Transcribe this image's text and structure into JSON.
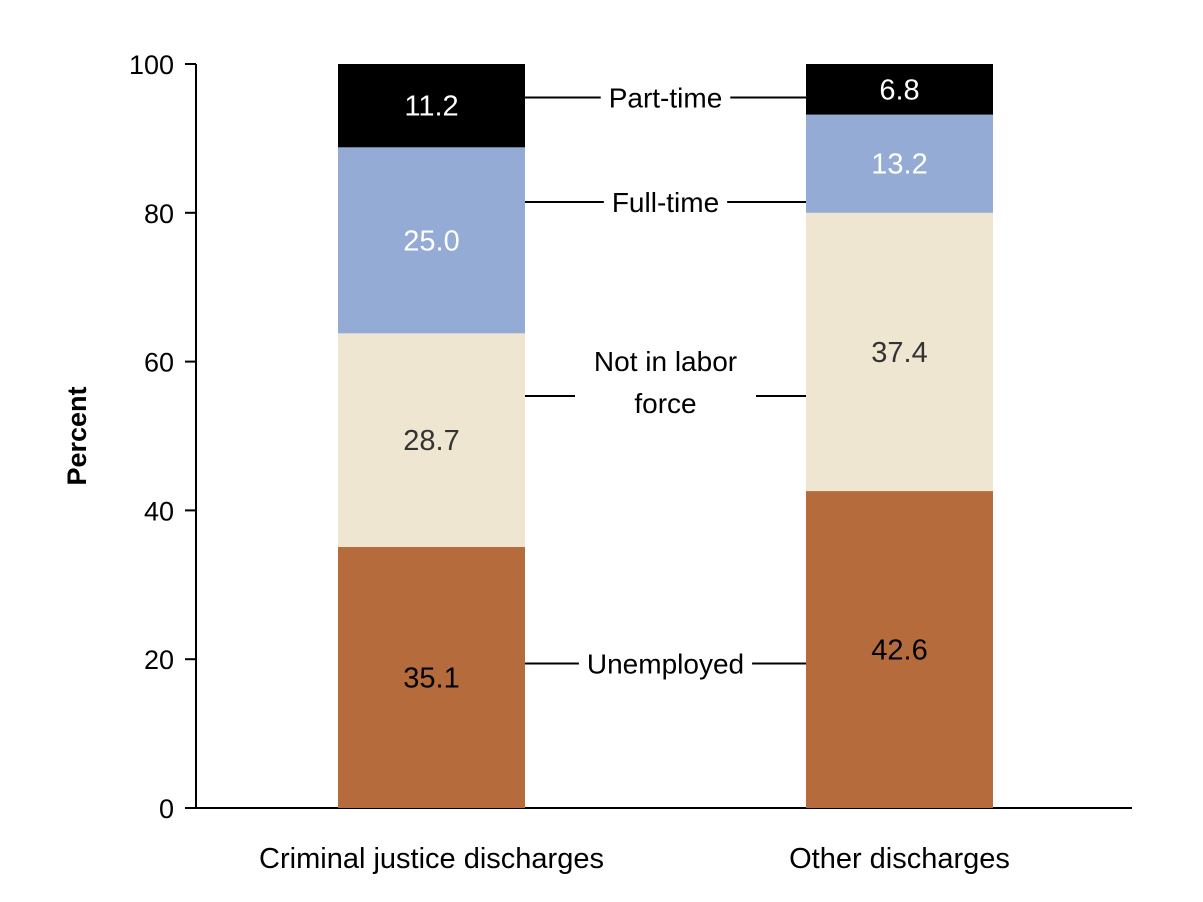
{
  "chart_data": {
    "type": "bar",
    "stacked": true,
    "title": "",
    "xlabel": "",
    "ylabel": "Percent",
    "ylim": [
      0,
      100
    ],
    "yticks": [
      0,
      20,
      40,
      60,
      80,
      100
    ],
    "categories": [
      "Criminal justice discharges",
      "Other discharges"
    ],
    "series": [
      {
        "name": "Unemployed",
        "values": [
          35.1,
          42.6
        ],
        "color": "#b56b3b",
        "label_color": "#000000"
      },
      {
        "name": "Not in labor force",
        "legend_lines": [
          "Not in labor",
          "force"
        ],
        "values": [
          28.7,
          37.4
        ],
        "color": "#efe6d1",
        "label_color": "#333333"
      },
      {
        "name": "Full-time",
        "values": [
          25.0,
          13.2
        ],
        "color": "#94abd6",
        "label_color": "#ffffff"
      },
      {
        "name": "Part-time",
        "values": [
          11.2,
          6.8
        ],
        "color": "#000000",
        "label_color": "#ffffff"
      }
    ],
    "value_labels": [
      [
        "35.1",
        "28.7",
        "25.0",
        "11.2"
      ],
      [
        "42.6",
        "37.4",
        "13.2",
        "6.8"
      ]
    ],
    "legend_placement": "between bars"
  }
}
